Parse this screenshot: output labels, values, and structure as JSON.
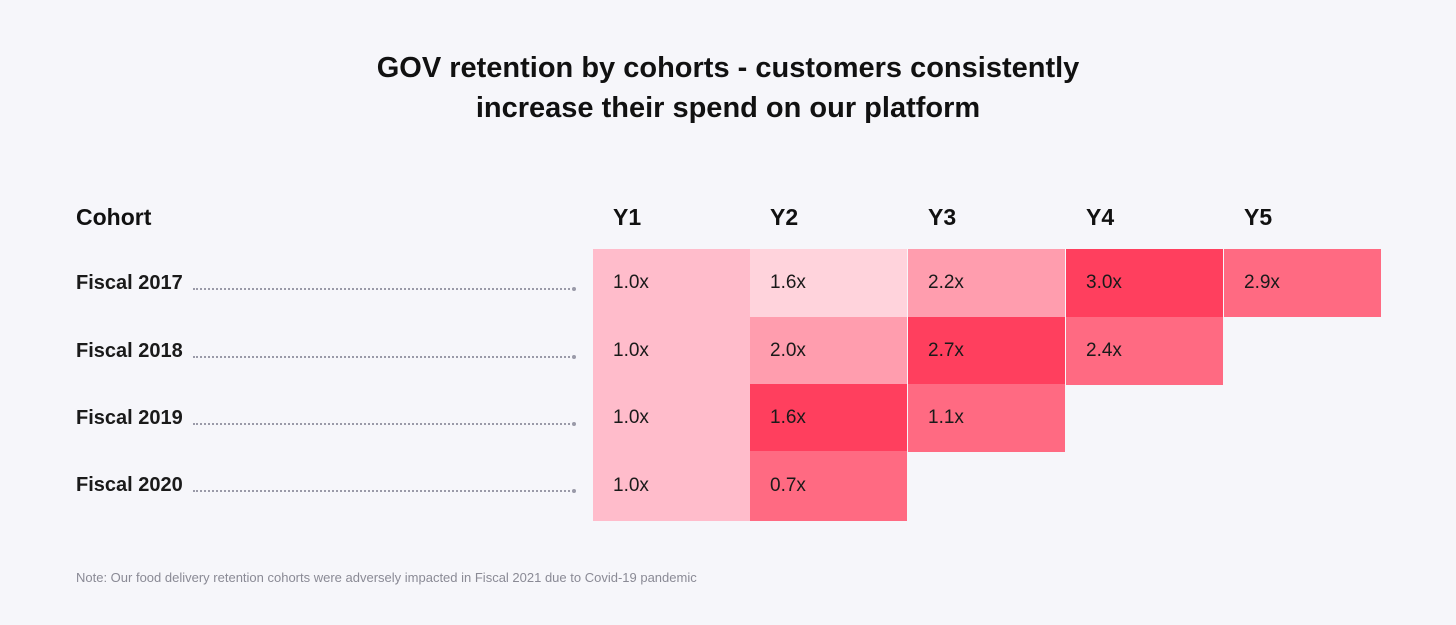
{
  "chart_data": {
    "type": "heatmap",
    "title_lines": [
      "GOV retention by cohorts - customers consistently",
      "increase their spend on our platform"
    ],
    "row_header": "Cohort",
    "columns": [
      "Y1",
      "Y2",
      "Y3",
      "Y4",
      "Y5"
    ],
    "rows": [
      {
        "label": "Fiscal 2017",
        "values": [
          "1.0x",
          "1.6x",
          "2.2x",
          "3.0x",
          "2.9x"
        ],
        "colors": [
          "#ffbccb",
          "#ffd3dc",
          "#ff9dae",
          "#ff3f5e",
          "#ff6a82"
        ]
      },
      {
        "label": "Fiscal 2018",
        "values": [
          "1.0x",
          "2.0x",
          "2.7x",
          "2.4x"
        ],
        "colors": [
          "#ffbccb",
          "#ff9dae",
          "#ff3f5e",
          "#ff6a82"
        ]
      },
      {
        "label": "Fiscal 2019",
        "values": [
          "1.0x",
          "1.6x",
          "1.1x"
        ],
        "colors": [
          "#ffbccb",
          "#ff3f5e",
          "#ff6a82"
        ]
      },
      {
        "label": "Fiscal 2020",
        "values": [
          "1.0x",
          "0.7x"
        ],
        "colors": [
          "#ffbccb",
          "#ff6a82"
        ]
      }
    ],
    "note": "Note: Our food delivery retention cohorts were adversely impacted in Fiscal 2021 due to Covid-19 pandemic"
  }
}
